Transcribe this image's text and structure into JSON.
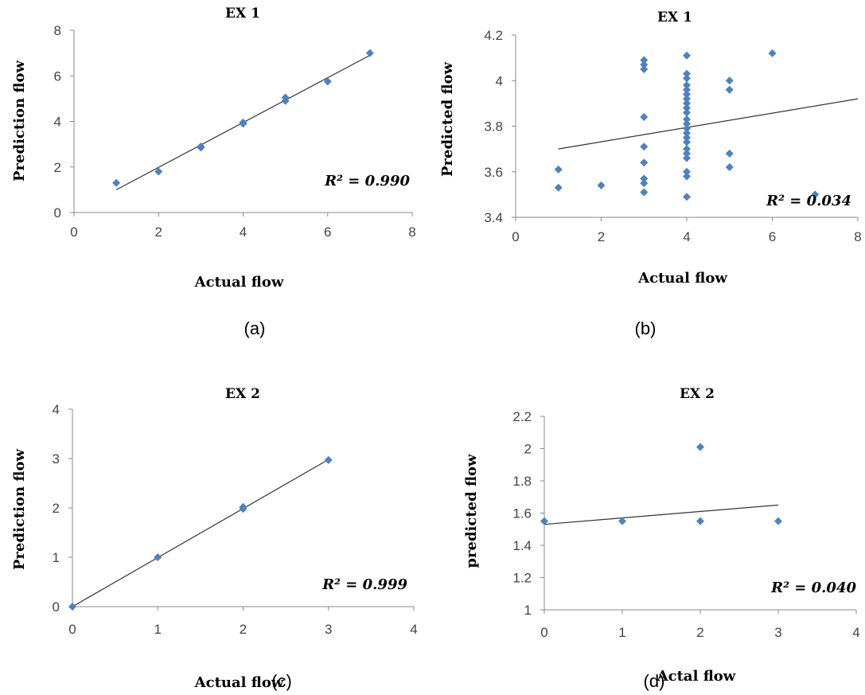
{
  "chart_data": [
    {
      "type": "scatter",
      "title": "EX 1",
      "xlabel": "Actual flow",
      "ylabel": "Prediction flow",
      "xlim": [
        0,
        8
      ],
      "ylim": [
        0,
        8
      ],
      "xticks": [
        "0",
        "2",
        "4",
        "6",
        "8"
      ],
      "yticks": [
        "0",
        "2",
        "4",
        "6",
        "8"
      ],
      "points": [
        [
          1,
          1.3
        ],
        [
          2,
          1.8
        ],
        [
          3,
          2.85
        ],
        [
          3,
          2.9
        ],
        [
          4,
          3.9
        ],
        [
          4,
          3.95
        ],
        [
          5,
          4.9
        ],
        [
          5,
          5.05
        ],
        [
          6,
          5.75
        ],
        [
          7,
          7.0
        ]
      ],
      "trendline": [
        [
          1,
          1.0
        ],
        [
          7,
          6.9
        ]
      ],
      "r2_label": "R² = 0.990",
      "caption": "(a)"
    },
    {
      "type": "scatter",
      "title": "EX 1",
      "xlabel": "Actual flow",
      "ylabel": "Predicted flow",
      "xlim": [
        0,
        8
      ],
      "ylim": [
        3.4,
        4.2
      ],
      "xticks": [
        "0",
        "2",
        "4",
        "6",
        "8"
      ],
      "yticks": [
        "3.4",
        "3.6",
        "3.8",
        "4",
        "4.2"
      ],
      "points": [
        [
          1,
          3.53
        ],
        [
          1,
          3.61
        ],
        [
          2,
          3.54
        ],
        [
          3,
          3.51
        ],
        [
          3,
          3.55
        ],
        [
          3,
          3.57
        ],
        [
          3,
          3.64
        ],
        [
          3,
          3.71
        ],
        [
          3,
          3.84
        ],
        [
          3,
          4.05
        ],
        [
          3,
          4.07
        ],
        [
          3,
          4.09
        ],
        [
          4,
          3.49
        ],
        [
          4,
          3.58
        ],
        [
          4,
          3.6
        ],
        [
          4,
          3.66
        ],
        [
          4,
          3.68
        ],
        [
          4,
          3.7
        ],
        [
          4,
          3.73
        ],
        [
          4,
          3.75
        ],
        [
          4,
          3.77
        ],
        [
          4,
          3.79
        ],
        [
          4,
          3.81
        ],
        [
          4,
          3.83
        ],
        [
          4,
          3.86
        ],
        [
          4,
          3.88
        ],
        [
          4,
          3.9
        ],
        [
          4,
          3.92
        ],
        [
          4,
          3.94
        ],
        [
          4,
          3.96
        ],
        [
          4,
          3.98
        ],
        [
          4,
          4.01
        ],
        [
          4,
          4.03
        ],
        [
          4,
          4.11
        ],
        [
          5,
          3.62
        ],
        [
          5,
          3.68
        ],
        [
          5,
          3.96
        ],
        [
          5,
          4.0
        ],
        [
          6,
          4.12
        ],
        [
          7,
          3.5
        ]
      ],
      "trendline": [
        [
          1,
          3.7
        ],
        [
          8,
          3.92
        ]
      ],
      "r2_label": "R² = 0.034",
      "caption": "(b)"
    },
    {
      "type": "scatter",
      "title": "EX 2",
      "xlabel": "Actual flow",
      "ylabel": "Prediction flow",
      "xlim": [
        0,
        4
      ],
      "ylim": [
        0,
        4
      ],
      "xticks": [
        "0",
        "1",
        "2",
        "3",
        "4"
      ],
      "yticks": [
        "0",
        "1",
        "2",
        "3",
        "4"
      ],
      "points": [
        [
          0,
          0.0
        ],
        [
          1,
          1.0
        ],
        [
          2,
          1.98
        ],
        [
          2,
          2.02
        ],
        [
          3,
          2.97
        ]
      ],
      "trendline": [
        [
          0,
          0.0
        ],
        [
          3,
          2.98
        ]
      ],
      "r2_label": "R² = 0.999",
      "caption": "(c)"
    },
    {
      "type": "scatter",
      "title": "EX 2",
      "xlabel": "Actal flow",
      "ylabel": "predicted flow",
      "xlim": [
        0,
        4
      ],
      "ylim": [
        1,
        2.2
      ],
      "xticks": [
        "0",
        "1",
        "2",
        "3",
        "4"
      ],
      "yticks": [
        "1",
        "1.2",
        "1.4",
        "1.6",
        "1.8",
        "2",
        "2.2"
      ],
      "points": [
        [
          0,
          1.55
        ],
        [
          1,
          1.55
        ],
        [
          2,
          1.55
        ],
        [
          2,
          2.01
        ],
        [
          3,
          1.55
        ]
      ],
      "trendline": [
        [
          0,
          1.53
        ],
        [
          3,
          1.65
        ]
      ],
      "r2_label": "R² = 0.040",
      "caption": "(d)"
    }
  ]
}
